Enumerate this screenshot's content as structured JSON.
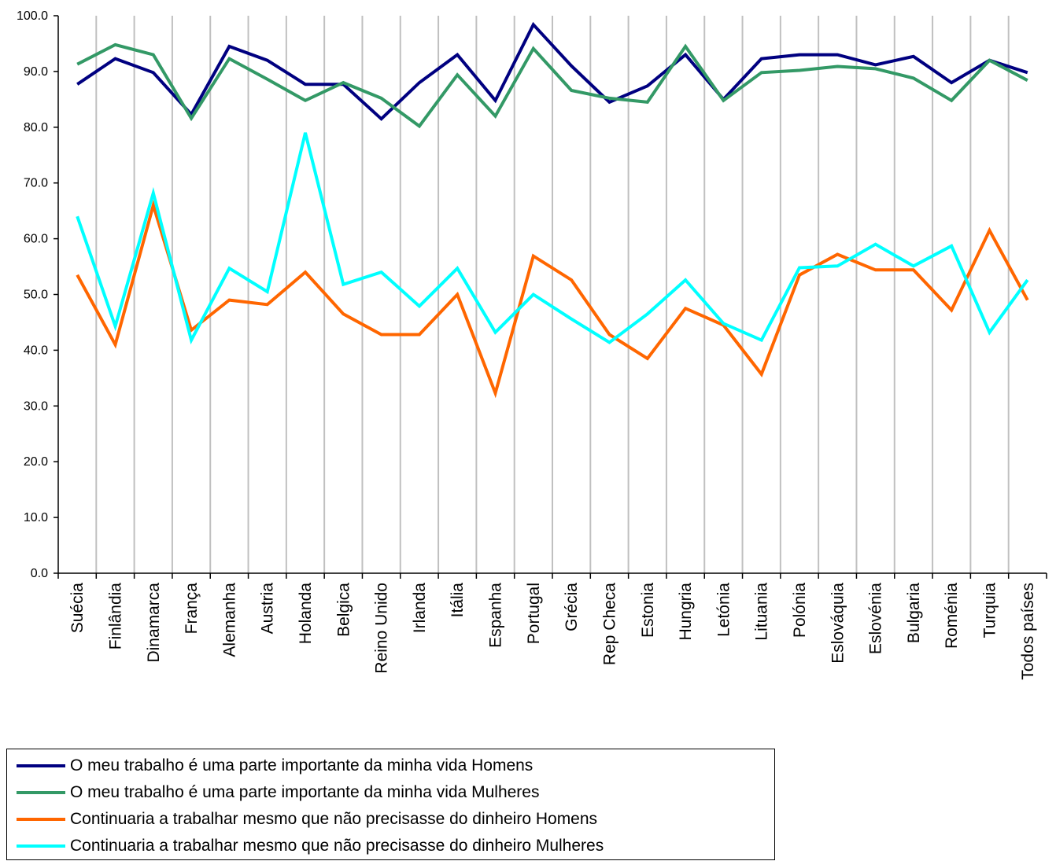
{
  "chart_data": {
    "type": "line",
    "categories": [
      "Suécia",
      "Finlândia",
      "Dinamarca",
      "França",
      "Alemanha",
      "Austria",
      "Holanda",
      "Belgica",
      "Reino Unido",
      "Irlanda",
      "Itália",
      "Espanha",
      "Portugal",
      "Grécia",
      "Rep Checa",
      "Estonia",
      "Hungria",
      "Letónia",
      "Lituania",
      "Polónia",
      "Eslováquia",
      "Eslovénia",
      "Bulgaria",
      "Roménia",
      "Turquia",
      "Todos países"
    ],
    "ylim": [
      0,
      100
    ],
    "yticks": [
      "0.0",
      "10.0",
      "20.0",
      "30.0",
      "40.0",
      "50.0",
      "60.0",
      "70.0",
      "80.0",
      "90.0",
      "100.0"
    ],
    "grid": "vertical",
    "legend_position": "bottom-left",
    "series": [
      {
        "name": "O meu trabalho é uma parte importante da minha vida Homens",
        "color": "#000080",
        "values": [
          87.7,
          92.3,
          89.8,
          82.3,
          94.5,
          92.0,
          87.7,
          87.7,
          81.5,
          88.0,
          93.0,
          84.8,
          98.4,
          91.0,
          84.5,
          87.4,
          93.0,
          85.0,
          92.3,
          93.0,
          93.0,
          91.2,
          92.7,
          88.0,
          92.0,
          89.8
        ]
      },
      {
        "name": "O meu trabalho é uma parte importante da minha vida Mulheres",
        "color": "#339966",
        "values": [
          91.3,
          94.8,
          93.0,
          81.6,
          92.3,
          88.6,
          84.8,
          88.0,
          85.2,
          80.2,
          89.4,
          82.0,
          94.1,
          86.6,
          85.2,
          84.5,
          94.5,
          84.8,
          89.8,
          90.2,
          90.9,
          90.5,
          88.8,
          84.8,
          92.0,
          88.4
        ]
      },
      {
        "name": "Continuaria a trabalhar mesmo que não precisasse do dinheiro  Homens",
        "color": "#FF6600",
        "values": [
          53.5,
          41.0,
          66.0,
          43.6,
          49.0,
          48.2,
          54.0,
          46.5,
          42.8,
          42.8,
          50.0,
          32.3,
          56.9,
          52.6,
          42.8,
          38.5,
          47.5,
          44.5,
          35.7,
          53.5,
          57.2,
          54.4,
          54.4,
          47.2,
          61.5,
          49.0
        ]
      },
      {
        "name": "Continuaria a trabalhar mesmo que não precisasse do dinheiro  Mulheres",
        "color": "#00FFFF",
        "values": [
          64.0,
          44.3,
          68.2,
          41.8,
          54.7,
          50.5,
          79.0,
          51.8,
          54.0,
          47.9,
          54.7,
          43.2,
          50.0,
          45.6,
          41.4,
          46.5,
          52.6,
          44.8,
          41.8,
          54.8,
          55.1,
          59.0,
          55.1,
          58.7,
          43.2,
          52.6
        ]
      }
    ]
  }
}
